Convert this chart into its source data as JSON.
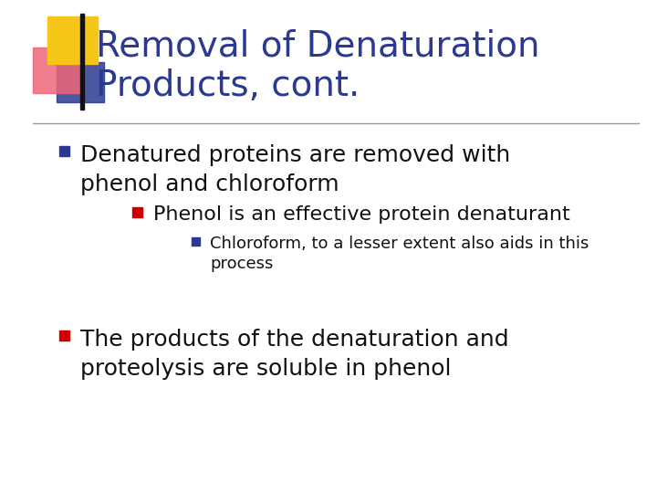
{
  "title_line1": "Removal of Denaturation",
  "title_line2": "Products, cont.",
  "title_color": "#2B3990",
  "title_fontsize": 28,
  "background_color": "#FFFFFF",
  "separator_line_color": "#999999",
  "bullet1_text_line1": "Denatured proteins are removed with",
  "bullet1_text_line2": "phenol and chloroform",
  "bullet1_marker_color": "#2B3990",
  "bullet1_fontsize": 18,
  "bullet2_text": "Phenol is an effective protein denaturant",
  "bullet2_marker_color": "#CC0000",
  "bullet2_fontsize": 16,
  "bullet3_text_line1": "Chloroform, to a lesser extent also aids in this",
  "bullet3_text_line2": "process",
  "bullet3_marker_color": "#2B3990",
  "bullet3_fontsize": 13,
  "bullet4_text_line1": "The products of the denaturation and",
  "bullet4_text_line2": "proteolysis are soluble in phenol",
  "bullet4_marker_color": "#CC0000",
  "bullet4_fontsize": 18,
  "logo_yellow_color": "#F5C518",
  "logo_red_color": "#EE6677",
  "logo_blue_color": "#2B3990"
}
